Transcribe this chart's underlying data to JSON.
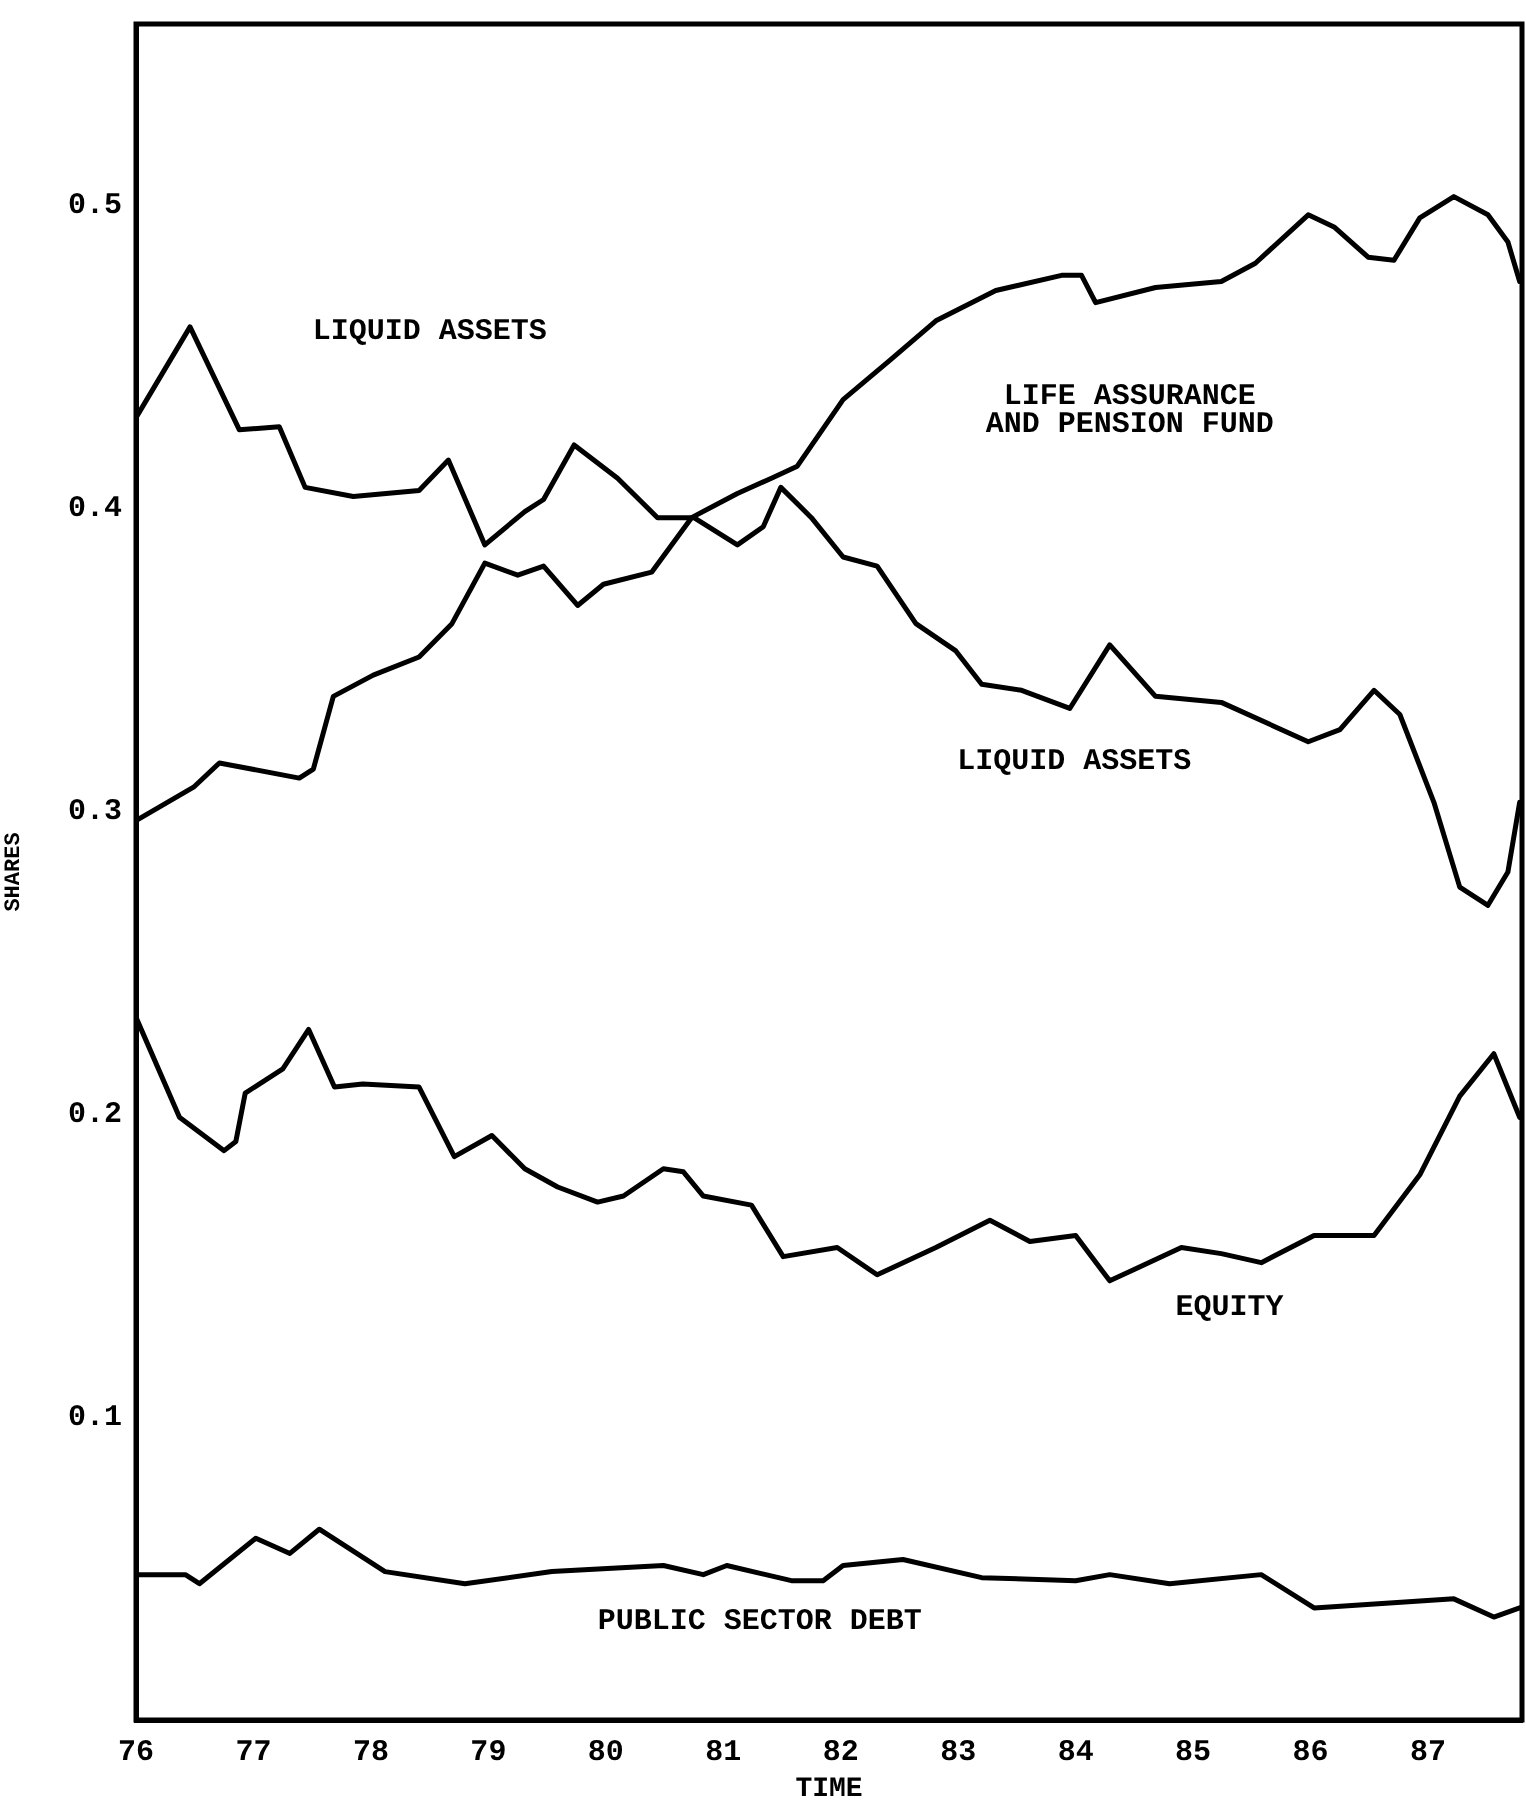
{
  "chart_data": {
    "type": "line",
    "xlabel": "TIME",
    "ylabel": "SHARES",
    "xlim": [
      76,
      87.8
    ],
    "xticks": [
      76,
      77,
      78,
      79,
      80,
      81,
      82,
      83,
      84,
      85,
      86,
      87
    ],
    "ylim": [
      0,
      0.56
    ],
    "yticks": [
      0.1,
      0.2,
      0.3,
      0.4,
      0.5
    ],
    "grid": false,
    "legend": false,
    "marker": "none",
    "line_style": "solid",
    "series": [
      {
        "name": "LIQUID ASSETS",
        "color": "#000000",
        "x": [
          76.0,
          76.46,
          76.88,
          77.22,
          77.44,
          77.85,
          78.41,
          78.66,
          78.97,
          79.31,
          79.47,
          79.73,
          80.1,
          80.44,
          80.75,
          81.12,
          81.34,
          81.49,
          81.75,
          82.02,
          82.31,
          82.64,
          82.98,
          83.2,
          83.54,
          83.95,
          84.29,
          84.68,
          85.24,
          85.98,
          86.25,
          86.54,
          86.76,
          87.05,
          87.27,
          87.51,
          87.68,
          87.78
        ],
        "values": [
          0.43,
          0.46,
          0.426,
          0.427,
          0.407,
          0.404,
          0.406,
          0.416,
          0.388,
          0.399,
          0.403,
          0.421,
          0.41,
          0.397,
          0.397,
          0.388,
          0.394,
          0.407,
          0.397,
          0.384,
          0.381,
          0.362,
          0.353,
          0.342,
          0.34,
          0.334,
          0.355,
          0.338,
          0.336,
          0.323,
          0.327,
          0.34,
          0.332,
          0.303,
          0.275,
          0.269,
          0.28,
          0.303
        ]
      },
      {
        "name": "LIFE ASSURANCE\nAND PENSION FUND",
        "color": "#000000",
        "x": [
          76.0,
          76.49,
          76.71,
          77.39,
          77.51,
          77.68,
          78.02,
          78.41,
          78.69,
          78.97,
          79.25,
          79.47,
          79.76,
          79.98,
          80.39,
          80.73,
          81.12,
          81.41,
          81.63,
          82.02,
          82.42,
          82.81,
          83.32,
          83.88,
          84.05,
          84.17,
          84.68,
          85.24,
          85.53,
          85.98,
          86.2,
          86.49,
          86.71,
          86.93,
          87.22,
          87.51,
          87.68,
          87.78
        ],
        "values": [
          0.297,
          0.308,
          0.316,
          0.311,
          0.314,
          0.338,
          0.345,
          0.351,
          0.362,
          0.382,
          0.378,
          0.381,
          0.368,
          0.375,
          0.379,
          0.397,
          0.405,
          0.41,
          0.414,
          0.436,
          0.449,
          0.462,
          0.472,
          0.477,
          0.477,
          0.468,
          0.473,
          0.475,
          0.481,
          0.497,
          0.493,
          0.483,
          0.482,
          0.496,
          0.503,
          0.497,
          0.488,
          0.475
        ]
      },
      {
        "name": "EQUITY",
        "color": "#000000",
        "x": [
          76.0,
          76.37,
          76.75,
          76.85,
          76.93,
          77.25,
          77.47,
          77.69,
          77.93,
          78.41,
          78.71,
          79.03,
          79.31,
          79.59,
          79.93,
          80.15,
          80.49,
          80.66,
          80.83,
          81.24,
          81.51,
          81.97,
          82.31,
          82.81,
          83.27,
          83.61,
          84.0,
          84.29,
          84.9,
          85.24,
          85.58,
          86.03,
          86.54,
          86.93,
          87.27,
          87.56,
          87.78
        ],
        "values": [
          0.232,
          0.199,
          0.188,
          0.191,
          0.207,
          0.215,
          0.228,
          0.209,
          0.21,
          0.209,
          0.186,
          0.193,
          0.182,
          0.176,
          0.171,
          0.173,
          0.182,
          0.181,
          0.173,
          0.17,
          0.153,
          0.156,
          0.147,
          0.156,
          0.165,
          0.158,
          0.16,
          0.145,
          0.156,
          0.154,
          0.151,
          0.16,
          0.16,
          0.18,
          0.206,
          0.22,
          0.199
        ]
      },
      {
        "name": "PUBLIC SECTOR DEBT",
        "color": "#000000",
        "x": [
          76.0,
          76.42,
          76.54,
          77.02,
          77.31,
          77.56,
          78.12,
          78.8,
          79.54,
          80.49,
          80.83,
          81.03,
          81.58,
          81.85,
          82.02,
          82.53,
          83.2,
          84.0,
          84.29,
          84.8,
          85.58,
          86.03,
          87.22,
          87.56,
          87.78
        ],
        "values": [
          0.048,
          0.048,
          0.045,
          0.06,
          0.055,
          0.063,
          0.049,
          0.045,
          0.049,
          0.051,
          0.048,
          0.051,
          0.046,
          0.046,
          0.051,
          0.053,
          0.047,
          0.046,
          0.048,
          0.045,
          0.048,
          0.037,
          0.04,
          0.034,
          0.037
        ]
      }
    ]
  }
}
